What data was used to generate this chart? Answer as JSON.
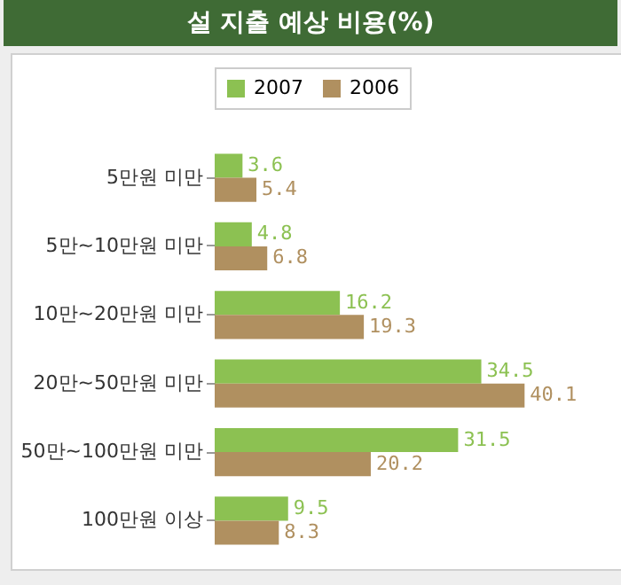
{
  "chart_data": {
    "type": "bar",
    "orientation": "horizontal",
    "title": "설 지출 예상 비용(%)",
    "categories": [
      "5만원 미만",
      "5만~10만원 미만",
      "10만~20만원 미만",
      "20만~50만원 미만",
      "50만~100만원 미만",
      "100만원 이상"
    ],
    "series": [
      {
        "name": "2007",
        "color": "#8cc152",
        "values": [
          3.6,
          4.8,
          16.2,
          34.5,
          31.5,
          9.5
        ]
      },
      {
        "name": "2006",
        "color": "#b09060",
        "values": [
          5.4,
          6.8,
          19.3,
          40.1,
          20.2,
          8.3
        ]
      }
    ],
    "data_labels": true,
    "grid": false,
    "legend": "top left"
  }
}
